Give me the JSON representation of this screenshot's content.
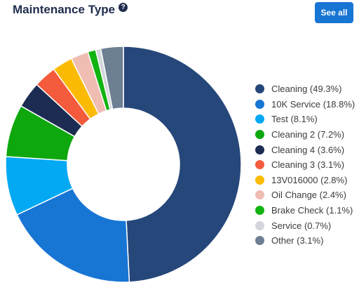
{
  "header": {
    "title": "Maintenance Type",
    "help_glyph": "?"
  },
  "actions": {
    "see_all_label": "See all"
  },
  "chart_data": {
    "type": "pie",
    "variant": "donut",
    "title": "Maintenance Type",
    "legend_position": "right",
    "slices": [
      {
        "label": "Cleaning (49.3%)",
        "value": 49.3,
        "color": "#26477a"
      },
      {
        "label": "10K Service (18.8%)",
        "value": 18.8,
        "color": "#1775d4"
      },
      {
        "label": "Test (8.1%)",
        "value": 8.1,
        "color": "#04a9f4"
      },
      {
        "label": "Cleaning 2 (7.2%)",
        "value": 7.2,
        "color": "#0ea80e"
      },
      {
        "label": "Cleaning 4 (3.6%)",
        "value": 3.6,
        "color": "#1c2c52"
      },
      {
        "label": "Cleaning 3 (3.1%)",
        "value": 3.1,
        "color": "#f45a3c"
      },
      {
        "label": "13V016000 (2.8%)",
        "value": 2.8,
        "color": "#fbbb05"
      },
      {
        "label": "Oil Change (2.4%)",
        "value": 2.4,
        "color": "#efbdb2"
      },
      {
        "label": "Brake Check (1.1%)",
        "value": 1.1,
        "color": "#11b311"
      },
      {
        "label": "Service (0.7%)",
        "value": 0.7,
        "color": "#d3d7dc"
      },
      {
        "label": "Other (3.1%)",
        "value": 3.1,
        "color": "#6d7f92"
      }
    ]
  }
}
